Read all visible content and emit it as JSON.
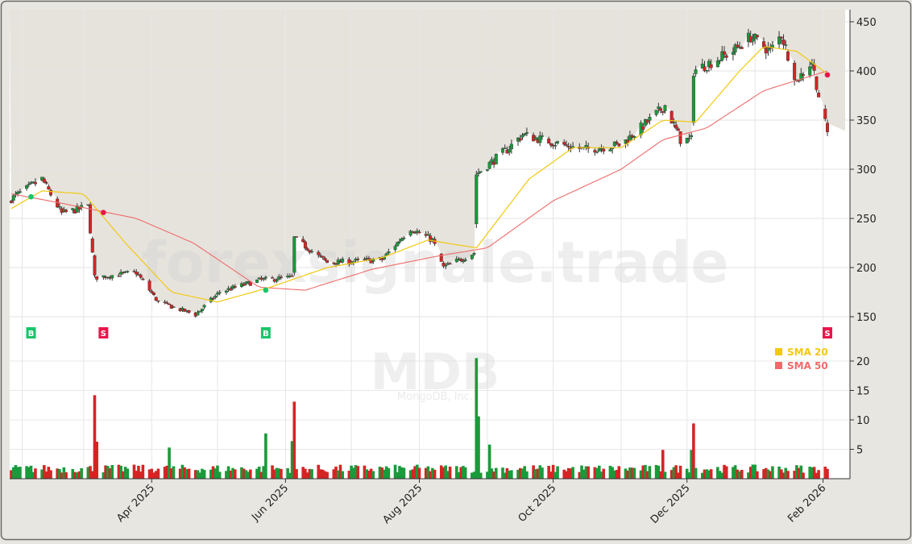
{
  "watermark": {
    "brand": "forexsignale.trade",
    "ticker": "MDB",
    "company": "MongoDB, Inc."
  },
  "legend": [
    {
      "label": "SMA 20",
      "color": "#f2c811"
    },
    {
      "label": "SMA 50",
      "color": "#ef6b6b"
    }
  ],
  "colors": {
    "up": "#1a9a3a",
    "down": "#d42525",
    "sma20": "#f2c811",
    "sma50": "#ef6b6b",
    "buy_marker": "#1bc46a",
    "sell_marker": "#e8174b"
  },
  "chart_data": [
    {
      "type": "candlestick",
      "title": "",
      "x_ticks": [
        "Apr 2025",
        "Jun 2025",
        "Aug 2025",
        "Oct 2025",
        "Dec 2025",
        "Feb 2026"
      ],
      "x_range": [
        "2025-01-27",
        "2026-02-03"
      ],
      "y_ticks": [
        150,
        200,
        250,
        300,
        350,
        400,
        450
      ],
      "ylim": [
        125,
        460
      ],
      "grid": true,
      "anchors": [
        {
          "date": "2025-01-27",
          "close": 270
        },
        {
          "date": "2025-02-10",
          "close": 290
        },
        {
          "date": "2025-02-19",
          "close": 255
        },
        {
          "date": "2025-03-03",
          "close": 262
        },
        {
          "date": "2025-03-06",
          "close": 190
        },
        {
          "date": "2025-03-25",
          "close": 195
        },
        {
          "date": "2025-04-04",
          "close": 165
        },
        {
          "date": "2025-04-21",
          "close": 152
        },
        {
          "date": "2025-05-02",
          "close": 175
        },
        {
          "date": "2025-05-20",
          "close": 187
        },
        {
          "date": "2025-06-04",
          "close": 190
        },
        {
          "date": "2025-06-05",
          "close": 230
        },
        {
          "date": "2025-06-20",
          "close": 205
        },
        {
          "date": "2025-07-15",
          "close": 208
        },
        {
          "date": "2025-07-28",
          "close": 240
        },
        {
          "date": "2025-08-07",
          "close": 228
        },
        {
          "date": "2025-08-12",
          "close": 200
        },
        {
          "date": "2025-08-26",
          "close": 215
        },
        {
          "date": "2025-08-27",
          "close": 295
        },
        {
          "date": "2025-09-10",
          "close": 320
        },
        {
          "date": "2025-09-17",
          "close": 335
        },
        {
          "date": "2025-10-15",
          "close": 320
        },
        {
          "date": "2025-11-01",
          "close": 325
        },
        {
          "date": "2025-11-14",
          "close": 350
        },
        {
          "date": "2025-11-21",
          "close": 365
        },
        {
          "date": "2025-11-28",
          "close": 330
        },
        {
          "date": "2025-12-03",
          "close": 330
        },
        {
          "date": "2025-12-04",
          "close": 400
        },
        {
          "date": "2025-12-22",
          "close": 420
        },
        {
          "date": "2025-12-30",
          "close": 435
        },
        {
          "date": "2026-01-08",
          "close": 420
        },
        {
          "date": "2026-01-13",
          "close": 437
        },
        {
          "date": "2026-01-20",
          "close": 390
        },
        {
          "date": "2026-01-27",
          "close": 410
        },
        {
          "date": "2026-01-30",
          "close": 375
        },
        {
          "date": "2026-02-03",
          "close": 337
        }
      ],
      "sma20_anchors": [
        {
          "date": "2025-01-27",
          "value": 260
        },
        {
          "date": "2025-02-10",
          "value": 278
        },
        {
          "date": "2025-03-01",
          "value": 275
        },
        {
          "date": "2025-03-20",
          "value": 225
        },
        {
          "date": "2025-04-10",
          "value": 175
        },
        {
          "date": "2025-05-01",
          "value": 165
        },
        {
          "date": "2025-05-25",
          "value": 180
        },
        {
          "date": "2025-06-20",
          "value": 200
        },
        {
          "date": "2025-07-15",
          "value": 210
        },
        {
          "date": "2025-08-05",
          "value": 228
        },
        {
          "date": "2025-08-27",
          "value": 220
        },
        {
          "date": "2025-09-20",
          "value": 290
        },
        {
          "date": "2025-10-10",
          "value": 322
        },
        {
          "date": "2025-11-01",
          "value": 322
        },
        {
          "date": "2025-11-20",
          "value": 350
        },
        {
          "date": "2025-12-05",
          "value": 348
        },
        {
          "date": "2025-12-25",
          "value": 400
        },
        {
          "date": "2026-01-05",
          "value": 425
        },
        {
          "date": "2026-01-20",
          "value": 420
        },
        {
          "date": "2026-02-03",
          "value": 397
        }
      ],
      "sma50_anchors": [
        {
          "date": "2025-01-27",
          "value": 275
        },
        {
          "date": "2025-02-20",
          "value": 265
        },
        {
          "date": "2025-03-25",
          "value": 250
        },
        {
          "date": "2025-04-20",
          "value": 225
        },
        {
          "date": "2025-05-20",
          "value": 180
        },
        {
          "date": "2025-06-10",
          "value": 177
        },
        {
          "date": "2025-07-10",
          "value": 198
        },
        {
          "date": "2025-08-10",
          "value": 212
        },
        {
          "date": "2025-09-01",
          "value": 220
        },
        {
          "date": "2025-10-01",
          "value": 268
        },
        {
          "date": "2025-11-01",
          "value": 300
        },
        {
          "date": "2025-11-20",
          "value": 330
        },
        {
          "date": "2025-12-10",
          "value": 342
        },
        {
          "date": "2026-01-05",
          "value": 380
        },
        {
          "date": "2026-02-03",
          "value": 400
        }
      ],
      "signals": [
        {
          "label": "B",
          "date": "2025-02-05",
          "price": 272,
          "side": "buy"
        },
        {
          "label": "S",
          "date": "2025-03-10",
          "price": 256,
          "side": "sell"
        },
        {
          "label": "B",
          "date": "2025-05-23",
          "price": 177,
          "side": "buy"
        },
        {
          "label": "S",
          "date": "2026-02-03",
          "price": 396,
          "side": "sell"
        }
      ]
    },
    {
      "type": "bar",
      "title": "",
      "y_ticks": [
        5,
        10,
        15,
        20
      ],
      "ylim": [
        0,
        22
      ],
      "volume_spikes": [
        {
          "date": "2025-03-06",
          "value": 14.2,
          "side": "down"
        },
        {
          "date": "2025-03-07",
          "value": 6.3,
          "side": "down"
        },
        {
          "date": "2025-04-09",
          "value": 5.3,
          "side": "up"
        },
        {
          "date": "2025-05-23",
          "value": 7.7,
          "side": "up"
        },
        {
          "date": "2025-06-04",
          "value": 6.4,
          "side": "up"
        },
        {
          "date": "2025-06-05",
          "value": 13.1,
          "side": "down"
        },
        {
          "date": "2025-08-27",
          "value": 20.5,
          "side": "up"
        },
        {
          "date": "2025-08-28",
          "value": 10.6,
          "side": "up"
        },
        {
          "date": "2025-09-02",
          "value": 5.8,
          "side": "up"
        },
        {
          "date": "2025-11-20",
          "value": 4.9,
          "side": "down"
        },
        {
          "date": "2025-12-03",
          "value": 4.9,
          "side": "up"
        },
        {
          "date": "2025-12-04",
          "value": 9.4,
          "side": "down"
        }
      ]
    }
  ]
}
